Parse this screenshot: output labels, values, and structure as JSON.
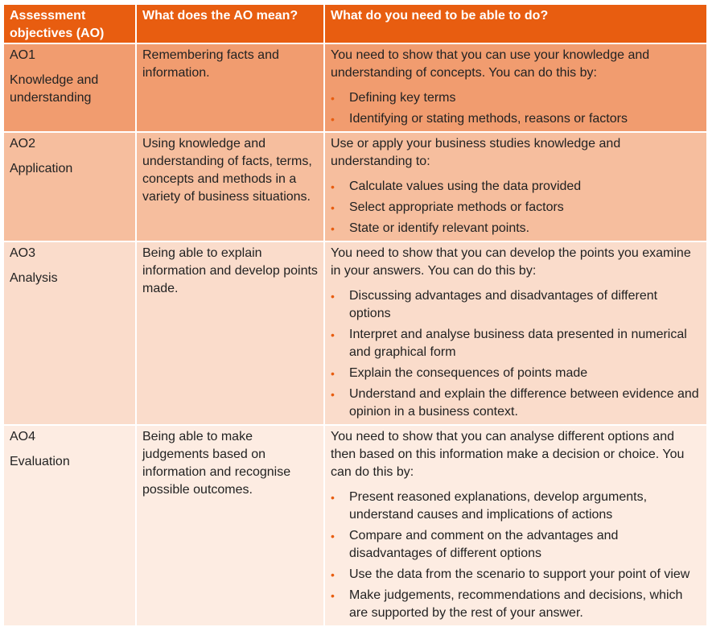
{
  "headers": [
    "Assessment objectives (AO)",
    "What does the AO mean?",
    "What do you need to be able to do?"
  ],
  "rows": [
    {
      "code": "AO1",
      "name": "Knowledge and understanding",
      "meaning": "Remembering facts and information.",
      "intro": "You need to show that you can use your knowledge and understanding of concepts. You can do this by:",
      "bullets": [
        "Defining key terms",
        "Identifying or stating methods, reasons or factors"
      ]
    },
    {
      "code": "AO2",
      "name": "Application",
      "meaning": "Using knowledge and understanding of facts, terms, concepts and methods in a variety of business situations.",
      "intro": "Use or apply your business studies knowledge and understanding to:",
      "bullets": [
        "Calculate values using the data provided",
        "Select appropriate methods or factors",
        "State or identify relevant points."
      ]
    },
    {
      "code": "AO3",
      "name": "Analysis",
      "meaning": "Being able to explain information and develop points made.",
      "intro": "You need to show that you can develop the points you examine in your answers. You can do this by:",
      "bullets": [
        "Discussing advantages and disadvantages of different options",
        "Interpret and analyse business data presented in numerical and graphical form",
        "Explain the consequences of points made",
        "Understand and explain the difference between evidence and opinion in a business context."
      ]
    },
    {
      "code": "AO4",
      "name": "Evaluation",
      "meaning": "Being able to make judgements based on information and recognise possible outcomes.",
      "intro": "You need to show that you can analyse different options and then based on this information make a decision or choice. You can do this by:",
      "bullets": [
        "Present reasoned explanations, develop arguments, understand causes and implications of actions",
        "Compare and comment on the advantages and disadvantages of different options",
        "Use the data from the scenario to support your point of view",
        "Make judgements, recommendations and decisions, which are supported by the rest of your answer."
      ]
    }
  ],
  "colors": {
    "header": "#E85D10",
    "row1": "#F19C6F",
    "row2": "#F6BE9E",
    "row3": "#FADCCB",
    "row4": "#FDECE2"
  }
}
